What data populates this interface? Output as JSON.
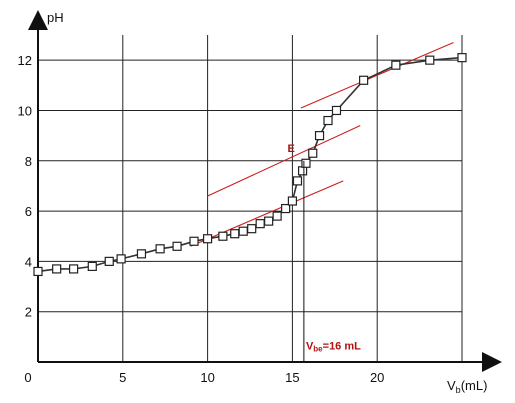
{
  "chart_data": {
    "type": "line",
    "title": "",
    "xlabel": "V",
    "xlabel_sub": "b",
    "xlabel_unit": "(mL)",
    "ylabel": "pH",
    "xlim": [
      0,
      25
    ],
    "ylim": [
      0,
      13
    ],
    "x_ticks": [
      0,
      5,
      10,
      15,
      20
    ],
    "x_tick_labels": [
      "0",
      "5",
      "10",
      "15",
      "20"
    ],
    "y_ticks": [
      2,
      4,
      6,
      8,
      10,
      12
    ],
    "y_tick_labels": [
      "2",
      "4",
      "6",
      "8",
      "10",
      "12"
    ],
    "grid": true,
    "series": [
      {
        "x": [
          0,
          1.1,
          2.1,
          3.2,
          4.2,
          4.9,
          6.1,
          7.2,
          8.2,
          9.2,
          10.0,
          10.9,
          11.6,
          12.1,
          12.6,
          13.1,
          13.6,
          14.1,
          14.6,
          15.0,
          15.3,
          15.6,
          15.8,
          16.2,
          16.6,
          17.1,
          17.6,
          19.2,
          21.1,
          23.1,
          25.0
        ],
        "y": [
          3.6,
          3.7,
          3.7,
          3.8,
          4.0,
          4.1,
          4.3,
          4.5,
          4.6,
          4.8,
          4.9,
          5.0,
          5.1,
          5.2,
          5.3,
          5.5,
          5.6,
          5.8,
          6.1,
          6.4,
          7.2,
          7.6,
          7.9,
          8.3,
          9.0,
          9.6,
          10.0,
          11.2,
          11.8,
          12.0,
          12.1
        ]
      }
    ],
    "tangents": [
      {
        "x": [
          9.0,
          18.0
        ],
        "y": [
          4.6,
          7.2
        ]
      },
      {
        "x": [
          10.0,
          19.0
        ],
        "y": [
          6.6,
          9.4
        ]
      },
      {
        "x": [
          15.5,
          24.5
        ],
        "y": [
          10.1,
          12.7
        ]
      }
    ],
    "equivalence": {
      "x": 15.5,
      "y": 8.0,
      "point_label": "E"
    },
    "annotation": {
      "main": "V",
      "sub": "be",
      "rest": "=16 mL",
      "x": 15.8,
      "y": 0.5
    }
  }
}
